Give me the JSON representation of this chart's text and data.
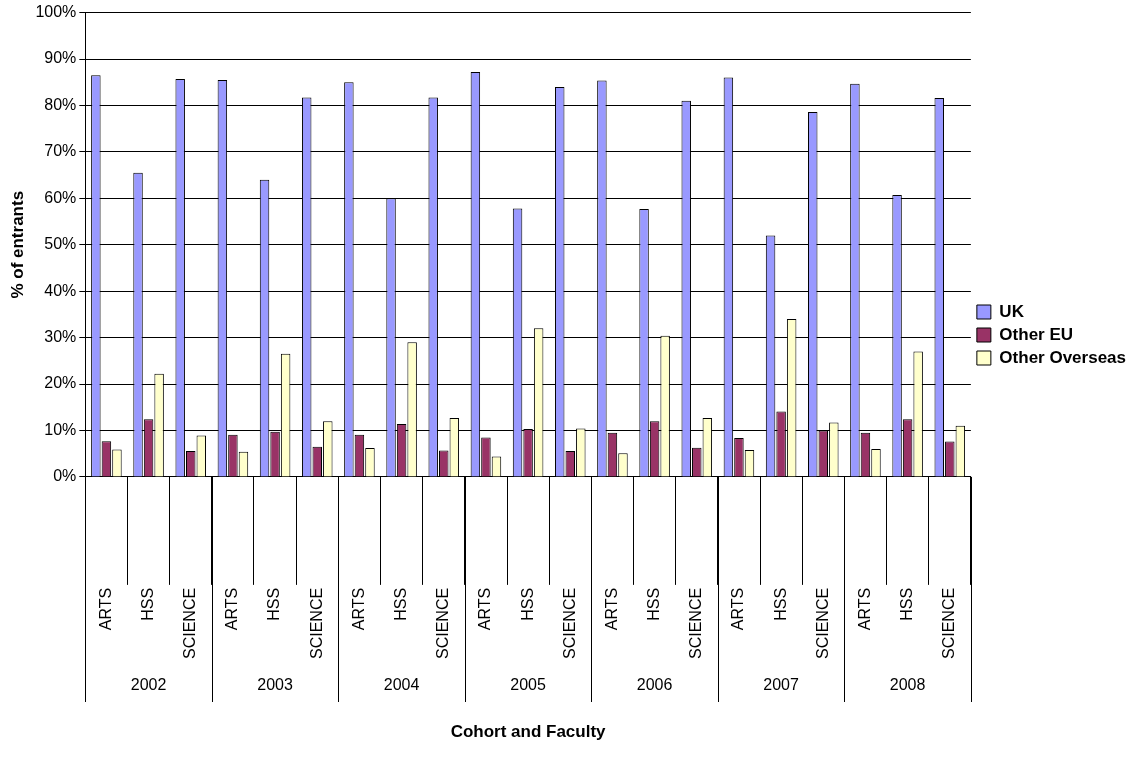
{
  "chart_data": {
    "type": "bar",
    "xlabel": "Cohort and Faculty",
    "ylabel": "% of entrants",
    "categories": [
      "ARTS",
      "HSS",
      "SCIENCE",
      "ARTS",
      "HSS",
      "SCIENCE",
      "ARTS",
      "HSS",
      "SCIENCE",
      "ARTS",
      "HSS",
      "SCIENCE",
      "ARTS",
      "HSS",
      "SCIENCE",
      "ARTS",
      "HSS",
      "SCIENCE",
      "ARTS",
      "HSS",
      "SCIENCE"
    ],
    "annotations": [
      "2002",
      "2003",
      "2004",
      "2005",
      "2006",
      "2007",
      "2008"
    ],
    "series": [
      {
        "name": "UK",
        "color": "#9999ff",
        "values": [
          86.5,
          65.5,
          85.7,
          85.5,
          64,
          81.7,
          85,
          60,
          81.7,
          87.2,
          57.8,
          84,
          85.4,
          57.7,
          81,
          86,
          52,
          78.6,
          84.7,
          60.7,
          81.6
        ]
      },
      {
        "name": "Other EU",
        "color": "#993366",
        "values": [
          7.7,
          12.4,
          5.6,
          9.1,
          9.7,
          6.5,
          9.1,
          11.4,
          5.7,
          8.5,
          10.3,
          5.6,
          9.5,
          12,
          6.3,
          8.4,
          14.1,
          10,
          9.5,
          12.4,
          7.6
        ]
      },
      {
        "name": "Other Overseas",
        "color": "#ffffcc",
        "values": [
          5.9,
          22.2,
          8.9,
          5.4,
          26.5,
          12,
          6.2,
          29,
          12.7,
          4.4,
          32,
          10.4,
          5.1,
          30.4,
          12.7,
          5.8,
          34,
          11.7,
          6,
          27,
          11
        ]
      }
    ],
    "ylim": [
      0,
      100
    ],
    "yticks": [
      {
        "value": 0,
        "label": "0%"
      },
      {
        "value": 10,
        "label": "10%"
      },
      {
        "value": 20,
        "label": "20%"
      },
      {
        "value": 30,
        "label": "30%"
      },
      {
        "value": 40,
        "label": "40%"
      },
      {
        "value": 50,
        "label": "50%"
      },
      {
        "value": 60,
        "label": "60%"
      },
      {
        "value": 70,
        "label": "70%"
      },
      {
        "value": 80,
        "label": "80%"
      },
      {
        "value": 90,
        "label": "90%"
      },
      {
        "value": 100,
        "label": "100%"
      }
    ],
    "grid": "y",
    "legend": "right"
  }
}
